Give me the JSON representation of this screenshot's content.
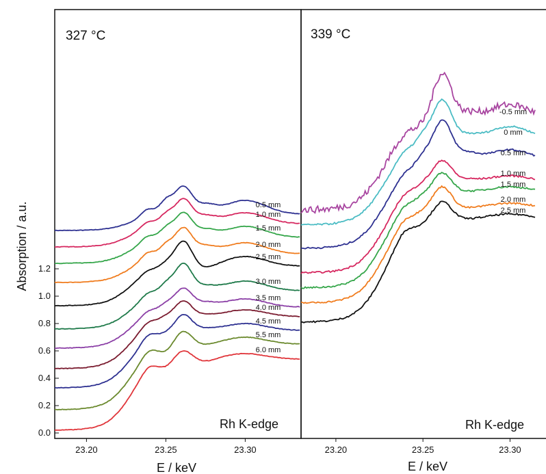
{
  "figure": {
    "ylabel": "Absorption / a.u.",
    "yticks": [
      "1.2",
      "1.0",
      "0.8",
      "0.6",
      "0.4",
      "0.2",
      "0.0"
    ]
  },
  "chart_data": [
    {
      "type": "line",
      "panel": "left",
      "title": "327 °C",
      "annotation": "Rh K-edge",
      "xlabel": "E / keV",
      "ylabel": "Absorption / a.u.",
      "xticks": [
        "23.20",
        "23.25",
        "23.30"
      ],
      "xlim": [
        23.18,
        23.335
      ],
      "ylim": [
        -0.02,
        2.5
      ],
      "grid": false,
      "series": [
        {
          "name": "0.5 mm",
          "color": "#2e3191",
          "offset": 1.5,
          "pre": 1.48,
          "peak": 1.8,
          "a": 1.72,
          "b": 1.73,
          "c": 1.66,
          "d": 1.7,
          "post": 1.6
        },
        {
          "name": "1.0 mm",
          "color": "#d6275f",
          "offset": 1.38,
          "pre": 1.36,
          "peak": 1.71,
          "a": 1.62,
          "b": 1.63,
          "c": 1.58,
          "d": 1.61,
          "post": 1.53
        },
        {
          "name": "1.5 mm",
          "color": "#35a64a",
          "offset": 1.26,
          "pre": 1.24,
          "peak": 1.61,
          "a": 1.52,
          "b": 1.53,
          "c": 1.48,
          "d": 1.51,
          "post": 1.43
        },
        {
          "name": "2.0 mm",
          "color": "#f07c1e",
          "offset": 1.12,
          "pre": 1.1,
          "peak": 1.5,
          "a": 1.4,
          "b": 1.42,
          "c": 1.36,
          "d": 1.39,
          "post": 1.31
        },
        {
          "name": "2.5 mm",
          "color": "#111111",
          "offset": 0.95,
          "pre": 0.93,
          "peak": 1.41,
          "a": 1.27,
          "b": 1.27,
          "c": 1.2,
          "d": 1.29,
          "post": 1.22
        },
        {
          "name": "3.0 mm",
          "color": "#1f7a4a",
          "offset": 0.78,
          "pre": 0.76,
          "peak": 1.24,
          "a": 1.12,
          "b": 1.12,
          "c": 1.07,
          "d": 1.11,
          "post": 1.04
        },
        {
          "name": "3.5 mm",
          "color": "#8b3fa6",
          "offset": 0.64,
          "pre": 0.62,
          "peak": 1.06,
          "a": 0.97,
          "b": 0.98,
          "c": 0.95,
          "d": 0.98,
          "post": 0.92
        },
        {
          "name": "4.0 mm",
          "color": "#7a1b2f",
          "offset": 0.49,
          "pre": 0.47,
          "peak": 0.97,
          "a": 0.88,
          "b": 0.92,
          "c": 0.86,
          "d": 0.9,
          "post": 0.85
        },
        {
          "name": "4.5 mm",
          "color": "#2e3191",
          "offset": 0.35,
          "pre": 0.33,
          "peak": 0.87,
          "a": 0.76,
          "b": 0.85,
          "c": 0.76,
          "d": 0.8,
          "post": 0.75
        },
        {
          "name": "5.5 mm",
          "color": "#6b8a2e",
          "offset": 0.19,
          "pre": 0.17,
          "peak": 0.75,
          "a": 0.62,
          "b": 0.73,
          "c": 0.64,
          "d": 0.7,
          "post": 0.65
        },
        {
          "name": "6.0 mm",
          "color": "#e0353a",
          "offset": 0.03,
          "pre": 0.02,
          "peak": 0.61,
          "a": 0.51,
          "b": 0.62,
          "c": 0.52,
          "d": 0.58,
          "post": 0.54
        }
      ]
    },
    {
      "type": "line",
      "panel": "right",
      "title": "339 °C",
      "annotation": "Rh K-edge",
      "xlabel": "E / keV",
      "xticks": [
        "23.20",
        "23.25",
        "23.30"
      ],
      "xlim": [
        23.18,
        23.315
      ],
      "ylim": [
        -0.02,
        2.5
      ],
      "grid": false,
      "series": [
        {
          "name": "-0.5 mm",
          "color": "#a845a0",
          "offset": 1.72,
          "pre": 1.63,
          "peak": 2.64,
          "a": 2.3,
          "b": 2.33,
          "c": 2.33,
          "d": 2.4,
          "post": 2.28
        },
        {
          "name": "0 mm",
          "color": "#4bbcc4",
          "offset": 1.53,
          "pre": 1.52,
          "peak": 2.44,
          "a": 2.23,
          "b": 2.21,
          "c": 2.17,
          "d": 2.24,
          "post": 2.13
        },
        {
          "name": "0.5 mm",
          "color": "#2e3191",
          "offset": 1.36,
          "pre": 1.35,
          "peak": 2.29,
          "a": 2.08,
          "b": 2.05,
          "c": 2.04,
          "d": 2.07,
          "post": 1.98
        },
        {
          "name": "1.0 mm",
          "color": "#d6275f",
          "offset": 1.18,
          "pre": 1.17,
          "peak": 2.0,
          "a": 1.87,
          "b": 1.9,
          "c": 1.85,
          "d": 1.88,
          "post": 1.83
        },
        {
          "name": "1.5 mm",
          "color": "#35a64a",
          "offset": 1.07,
          "pre": 1.06,
          "peak": 1.91,
          "a": 1.78,
          "b": 1.82,
          "c": 1.76,
          "d": 1.8,
          "post": 1.75
        },
        {
          "name": "2.0 mm",
          "color": "#f07c1e",
          "offset": 0.96,
          "pre": 0.95,
          "peak": 1.81,
          "a": 1.67,
          "b": 1.73,
          "c": 1.64,
          "d": 1.68,
          "post": 1.64
        },
        {
          "name": "2.5 mm",
          "color": "#111111",
          "offset": 0.82,
          "pre": 0.81,
          "peak": 1.7,
          "a": 1.57,
          "b": 1.67,
          "c": 1.56,
          "d": 1.6,
          "post": 1.56
        }
      ]
    }
  ]
}
